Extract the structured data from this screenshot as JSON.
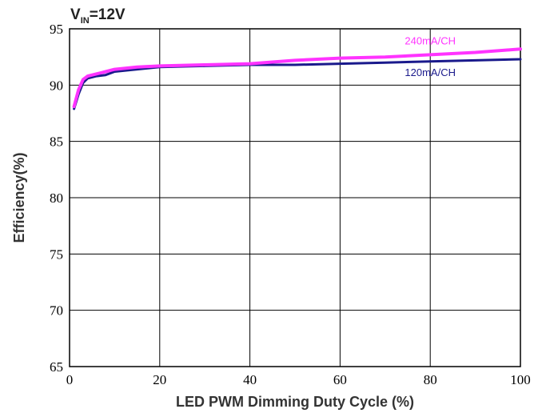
{
  "chart_data": {
    "type": "line",
    "title_main": "V",
    "title_sub": "IN",
    "title_rest": "=12V",
    "xlabel": "LED PWM Dimming Duty Cycle (%)",
    "ylabel": "Efficiency(%)",
    "xlim": [
      0,
      100
    ],
    "ylim": [
      65,
      95
    ],
    "xticks": [
      0,
      20,
      40,
      60,
      80,
      100
    ],
    "yticks": [
      65,
      70,
      75,
      80,
      85,
      90,
      95
    ],
    "grid": true,
    "series": [
      {
        "name": "120mA/CH",
        "color": "#1a1a8c",
        "x": [
          1,
          2,
          3,
          4,
          6,
          8,
          10,
          15,
          20,
          30,
          40,
          50,
          60,
          70,
          80,
          90,
          100
        ],
        "y": [
          87.9,
          89.2,
          90.2,
          90.6,
          90.8,
          90.9,
          91.2,
          91.4,
          91.6,
          91.7,
          91.8,
          91.8,
          91.9,
          92.0,
          92.1,
          92.2,
          92.3
        ]
      },
      {
        "name": "240mA/CH",
        "color": "#ff33ff",
        "x": [
          1,
          2,
          3,
          4,
          6,
          8,
          10,
          15,
          20,
          30,
          40,
          50,
          60,
          70,
          80,
          90,
          100
        ],
        "y": [
          88.1,
          89.6,
          90.5,
          90.8,
          91.0,
          91.2,
          91.4,
          91.6,
          91.7,
          91.8,
          91.9,
          92.2,
          92.4,
          92.5,
          92.7,
          92.9,
          93.2
        ]
      }
    ]
  }
}
